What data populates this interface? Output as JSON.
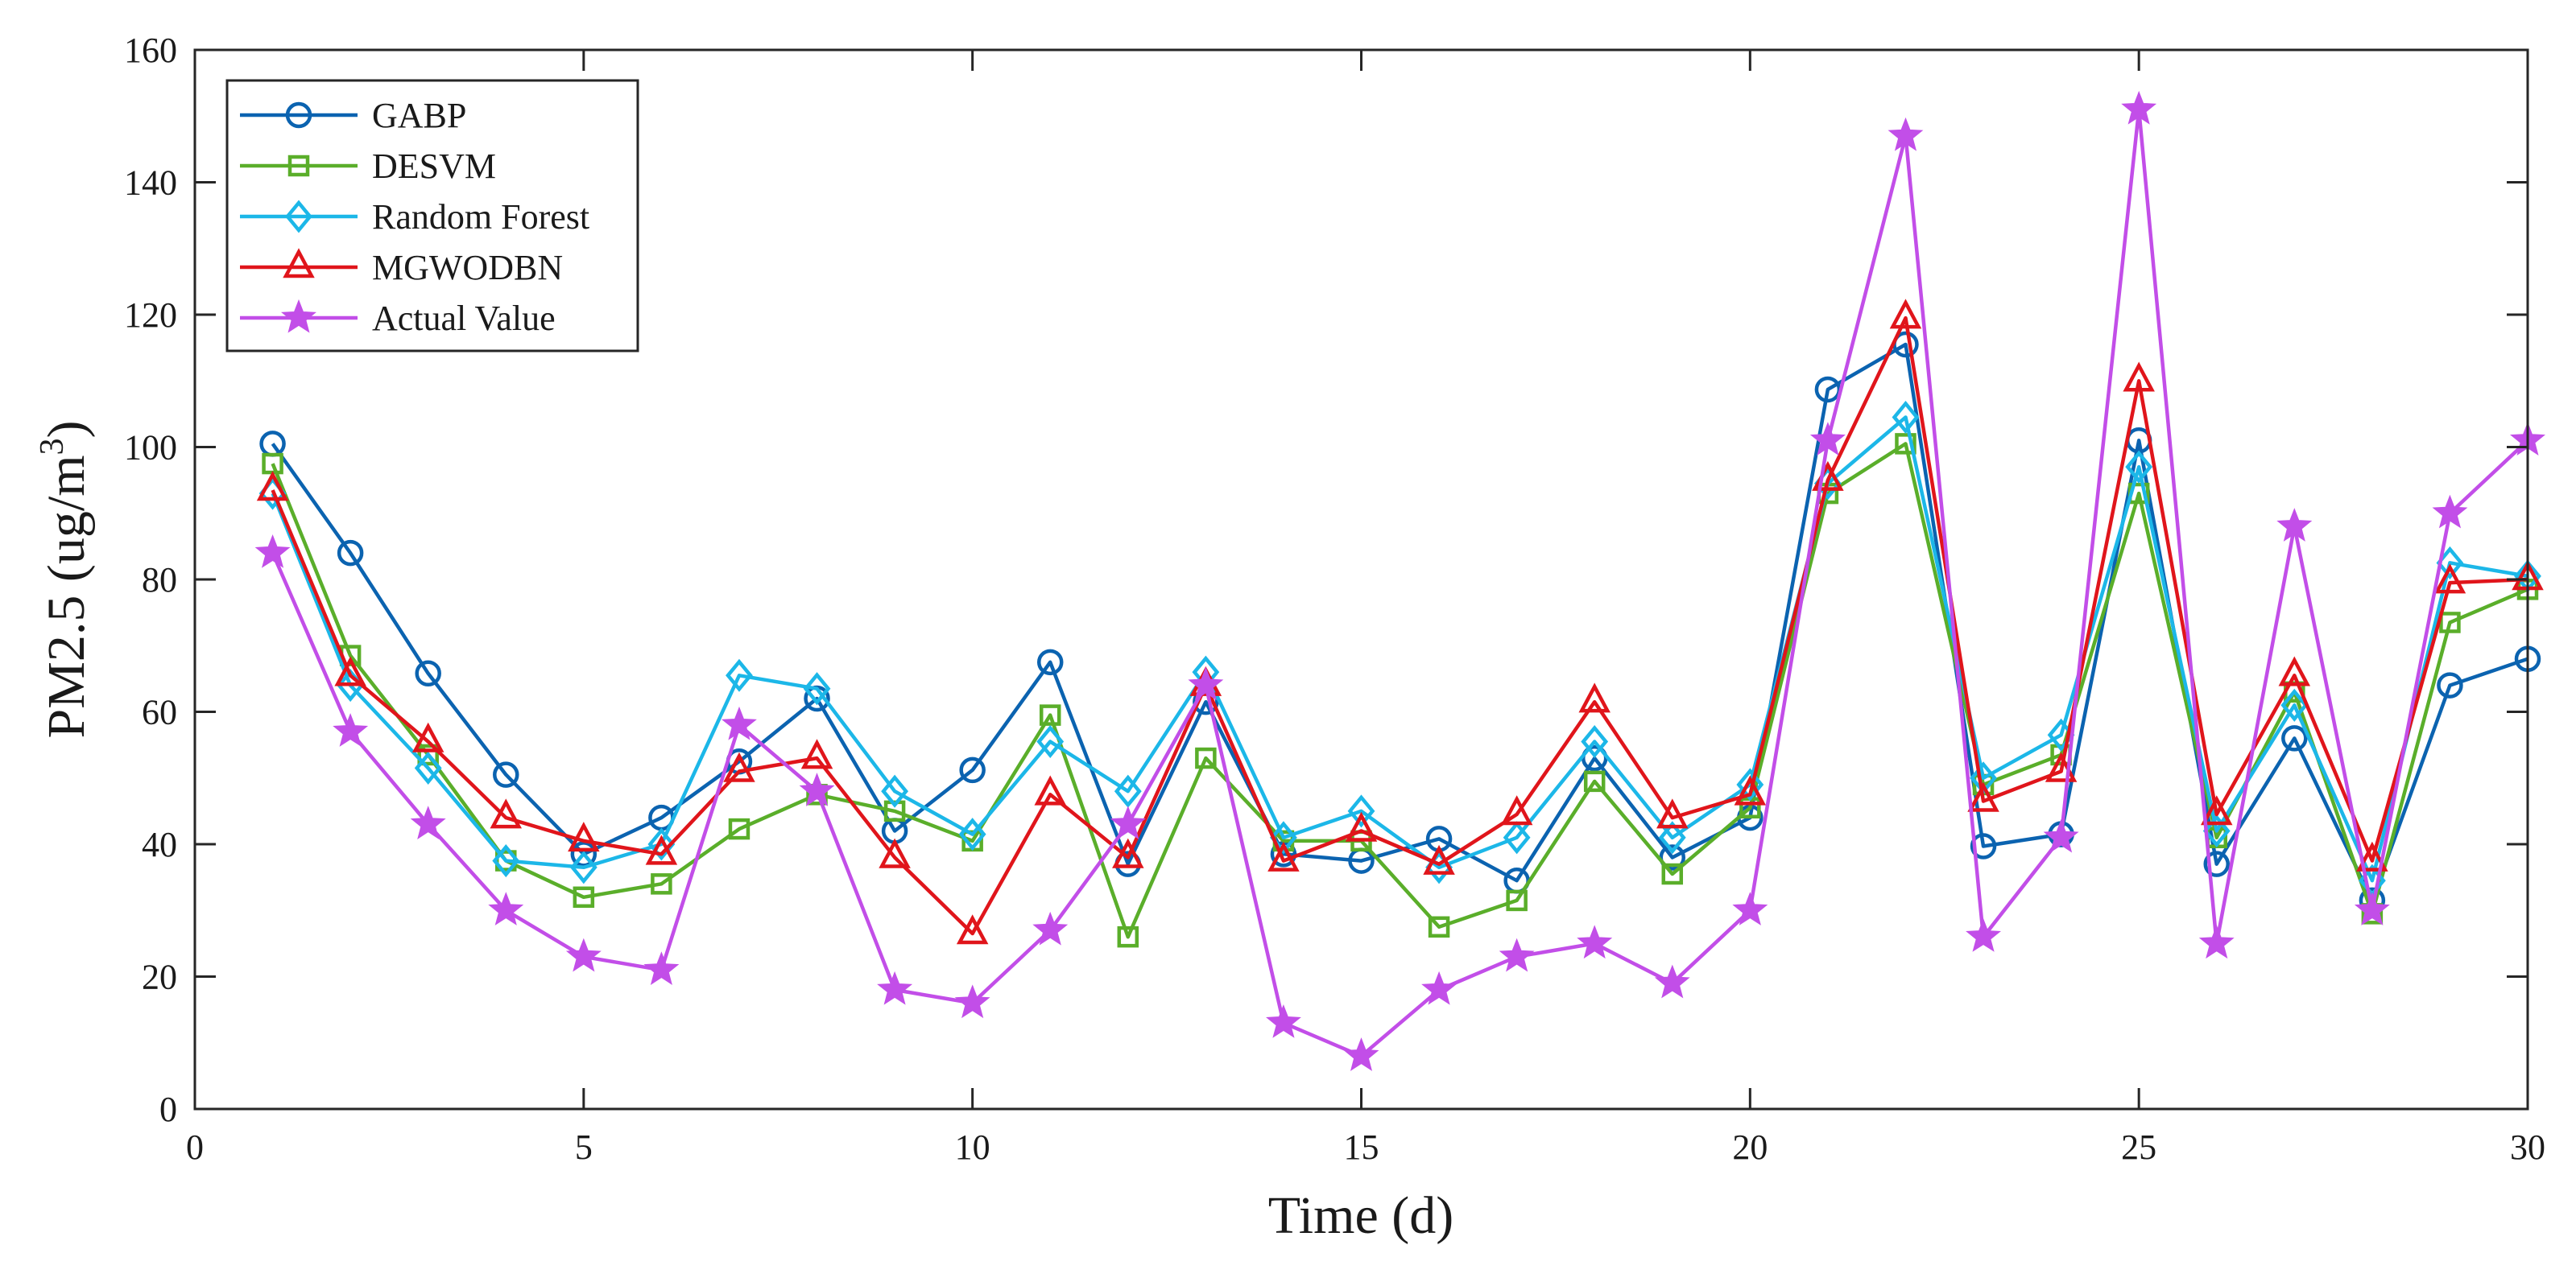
{
  "chart_data": {
    "type": "line",
    "title": "",
    "xlabel": "Time (d)",
    "ylabel_main": "PM2.5 (ug/m",
    "ylabel_sup": "3",
    "ylabel_close": ")",
    "xlim": [
      0,
      30
    ],
    "ylim": [
      0,
      160
    ],
    "xticks": [
      0,
      5,
      10,
      15,
      20,
      25,
      30
    ],
    "yticks": [
      0,
      20,
      40,
      60,
      80,
      100,
      120,
      140,
      160
    ],
    "grid": false,
    "legend_position": "top-left",
    "x": [
      1,
      2,
      3,
      4,
      5,
      6,
      7,
      8,
      9,
      10,
      11,
      12,
      13,
      14,
      15,
      16,
      17,
      18,
      19,
      20,
      21,
      22,
      23,
      24,
      25,
      26,
      27,
      28,
      29,
      30
    ],
    "series": [
      {
        "name": "GABP",
        "color": "#0b63b0",
        "marker": "circle",
        "values": [
          100.5,
          84,
          65.8,
          50.5,
          38.5,
          44,
          52.5,
          62,
          42,
          51.2,
          67.5,
          37,
          61.5,
          38.5,
          37.5,
          40.8,
          34.5,
          53,
          38,
          44,
          108.7,
          115.5,
          39.7,
          41.5,
          101,
          37,
          56,
          31.5,
          64,
          68
        ]
      },
      {
        "name": "DESVM",
        "color": "#5aae2a",
        "marker": "square",
        "values": [
          97.5,
          68.5,
          53.5,
          37.5,
          32,
          34,
          42.3,
          47.5,
          45,
          40.5,
          59.5,
          26,
          53,
          40.5,
          40.5,
          27.5,
          31.5,
          49.5,
          35.5,
          45.5,
          93,
          100.5,
          49,
          53.5,
          93,
          41,
          63,
          29.5,
          73.5,
          78.5
        ]
      },
      {
        "name": "Random Forest",
        "color": "#1cb7e8",
        "marker": "diamond",
        "values": [
          93,
          64,
          51.5,
          37.5,
          36.5,
          40,
          65.5,
          63.5,
          48,
          41.5,
          55.5,
          48,
          66,
          41,
          45,
          36.5,
          41,
          55.5,
          41,
          49,
          94.5,
          104.5,
          50,
          56.5,
          97,
          42,
          61,
          34.5,
          82.5,
          80.5
        ]
      },
      {
        "name": "MGWODBN",
        "color": "#e0151b",
        "marker": "triangle",
        "values": [
          93.5,
          65.5,
          55.5,
          44,
          40.5,
          38.5,
          51,
          53,
          38,
          26.5,
          47.5,
          38,
          64,
          37.5,
          42,
          37,
          44.5,
          61.5,
          44,
          47.5,
          95,
          119.5,
          46.5,
          51,
          110,
          44.5,
          65.5,
          37.5,
          79.5,
          80
        ]
      },
      {
        "name": "Actual Value",
        "color": "#c24ee8",
        "marker": "star",
        "values": [
          84,
          57,
          43,
          30,
          23,
          21,
          58,
          48,
          18,
          16,
          27,
          43,
          64,
          13,
          8,
          18,
          23,
          25,
          19,
          30,
          101,
          147,
          26,
          41,
          151,
          25,
          88,
          30,
          90,
          101
        ]
      }
    ]
  }
}
